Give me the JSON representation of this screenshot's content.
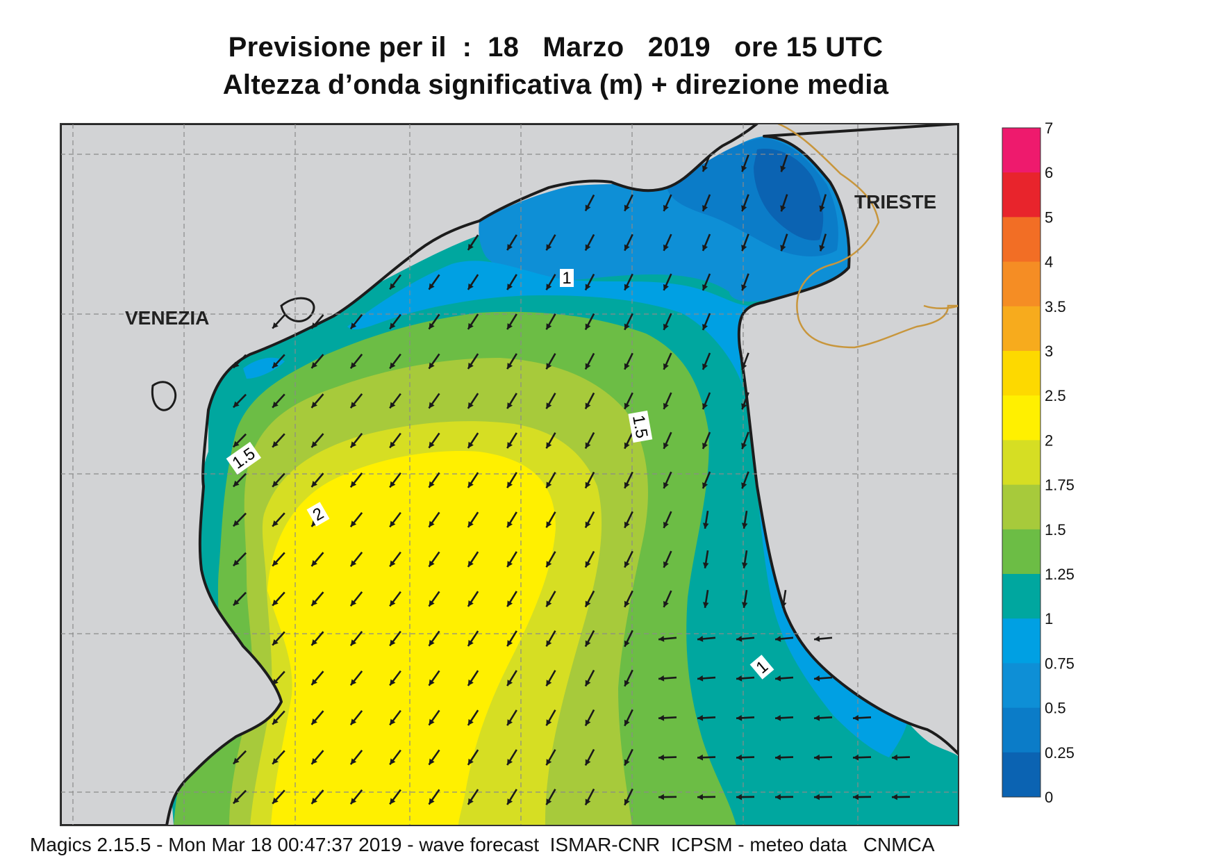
{
  "title": {
    "line1": "Previsione per il  :  18   Marzo   2019   ore 15 UTC",
    "line2": "Altezza d’onda significativa (m) + direzione media"
  },
  "map": {
    "cities": [
      {
        "name": "VENEZIA"
      },
      {
        "name": "TRIESTE"
      }
    ],
    "contour_labels": [
      "1",
      "1.5",
      "1.5",
      "2",
      "1"
    ],
    "land_color": "#d2d3d5",
    "border_color": "#c8963c",
    "coast_color": "#1c1c1c",
    "arrow_color": "#1a1a1a",
    "arrow_direction": "mostly toward south-west"
  },
  "legend": {
    "ticks": [
      "7",
      "6",
      "5",
      "4",
      "3.5",
      "3",
      "2.5",
      "2",
      "1.75",
      "1.5",
      "1.25",
      "1",
      "0.75",
      "0.5",
      "0.25",
      "0"
    ],
    "colors": [
      "#ee1a6d",
      "#e8242c",
      "#f26e25",
      "#f58d24",
      "#f7ab1d",
      "#fdd900",
      "#fff000",
      "#d6de23",
      "#a7ca3b",
      "#6cbd45",
      "#00a79f",
      "#00a0e3",
      "#0e8fd6",
      "#0b7cc8",
      "#0b63b2"
    ]
  },
  "footer": "Magics 2.15.5 - Mon Mar 18 00:47:37 2019 - wave forecast  ISMAR-CNR  ICPSM - meteo data   CNMCA"
}
